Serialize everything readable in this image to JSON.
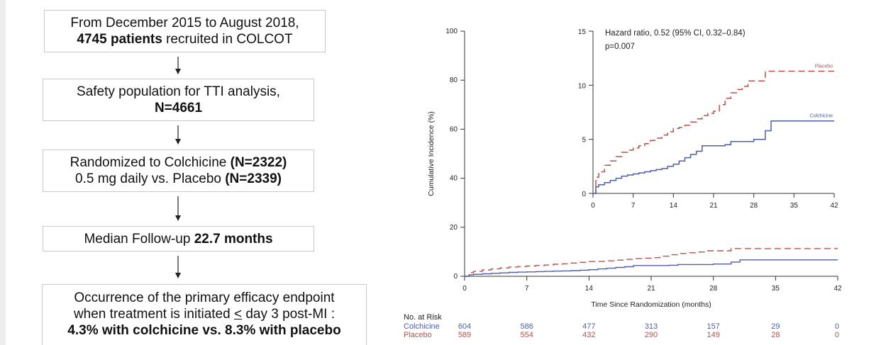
{
  "flowchart": {
    "box1": {
      "line1": "From December 2015 to August 2018,",
      "line2_bold": "4745 patients",
      "line2_rest": " recruited in COLCOT"
    },
    "box2": {
      "line1": "Safety population for TTI analysis,",
      "line2_bold": "N=4661"
    },
    "box3": {
      "line1_pre": "Randomized to Colchicine ",
      "line1_bold": "(N=2322)",
      "line2_pre": "0.5 mg daily vs. Placebo ",
      "line2_bold": "(N=2339)"
    },
    "box4": {
      "pre": "Median Follow-up ",
      "bold": "22.7 months"
    },
    "box5": {
      "line1": "Occurrence of the primary efficacy endpoint",
      "line2": "when treatment is initiated ",
      "line2_le": "<",
      "line2_day": "day 3 post-MI :",
      "line3_bold": "4.3% with colchicine vs. 8.3% with placebo"
    }
  },
  "chart_data": {
    "type": "line",
    "xlabel": "Time Since Randomization (months)",
    "ylabel": "Cumulative Incidence (%)",
    "xlim": [
      0,
      42
    ],
    "ylim": [
      0,
      100
    ],
    "x_ticks": [
      0,
      7,
      14,
      21,
      28,
      35,
      42
    ],
    "y_ticks": [
      0,
      20,
      40,
      60,
      80,
      100
    ],
    "colors": {
      "placebo": "#b5524a",
      "colchicine": "#4f5ea8"
    },
    "series": [
      {
        "name": "Placebo",
        "style": "dashed",
        "x": [
          0,
          0.5,
          1,
          2,
          3,
          4,
          5,
          6,
          7,
          8,
          9,
          10,
          11,
          12,
          13,
          14,
          15,
          16,
          17,
          18,
          19,
          20,
          21,
          22,
          23,
          24,
          25,
          26,
          27,
          28,
          30,
          32,
          34,
          36,
          38,
          40,
          42
        ],
        "y": [
          0,
          1.5,
          2.0,
          2.6,
          3.0,
          3.4,
          3.8,
          4.0,
          4.2,
          4.4,
          4.6,
          4.9,
          5.1,
          5.4,
          5.7,
          6.0,
          6.1,
          6.3,
          6.6,
          6.9,
          7.2,
          7.4,
          7.6,
          8.2,
          8.8,
          9.3,
          9.6,
          9.9,
          10.4,
          10.4,
          11.3,
          11.3,
          11.3,
          11.3,
          11.3,
          11.3,
          11.3
        ]
      },
      {
        "name": "Colchicine",
        "style": "solid",
        "x": [
          0,
          0.5,
          1,
          2,
          3,
          4,
          5,
          6,
          7,
          8,
          9,
          10,
          11,
          12,
          13,
          14,
          15,
          16,
          17,
          18,
          19,
          20,
          21,
          22,
          23,
          24,
          25,
          26,
          27,
          28,
          30,
          31,
          33,
          36,
          38,
          40,
          42
        ],
        "y": [
          0,
          0.6,
          0.8,
          1.0,
          1.2,
          1.4,
          1.6,
          1.7,
          1.8,
          1.9,
          2.0,
          2.1,
          2.2,
          2.3,
          2.5,
          2.7,
          3.0,
          3.3,
          3.6,
          3.9,
          4.4,
          4.4,
          4.4,
          4.4,
          4.5,
          4.8,
          4.8,
          4.8,
          4.8,
          5.0,
          5.8,
          6.7,
          6.7,
          6.7,
          6.7,
          6.7,
          6.7
        ]
      }
    ],
    "inset": {
      "xlim": [
        0,
        42
      ],
      "ylim": [
        0,
        15
      ],
      "x_ticks": [
        0,
        7,
        14,
        21,
        28,
        35,
        42
      ],
      "y_ticks": [
        0,
        5,
        10,
        15
      ],
      "annotation_line1": "Hazard ratio, 0.52 (95% CI, 0.32–0.84)",
      "annotation_line2": "p=0.007"
    },
    "at_risk": {
      "title": "No. at Risk",
      "times": [
        0,
        7,
        14,
        21,
        28,
        35,
        42
      ],
      "rows": [
        {
          "label": "Colchicine",
          "values": [
            604,
            586,
            477,
            313,
            157,
            29,
            0
          ]
        },
        {
          "label": "Placebo",
          "values": [
            589,
            554,
            432,
            290,
            149,
            28,
            0
          ]
        }
      ]
    }
  }
}
